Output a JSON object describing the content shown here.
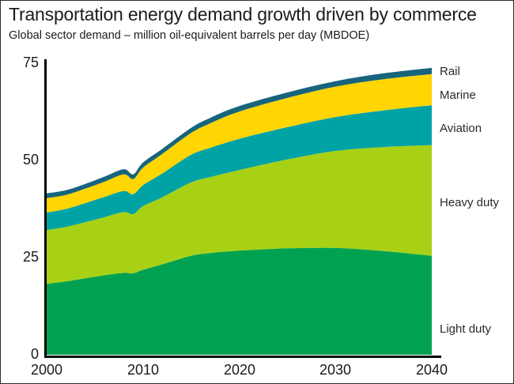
{
  "header": {
    "title": "Transportation energy demand growth driven by commerce",
    "subtitle": "Global sector demand – million oil-equivalent barrels per day (MBDOE)"
  },
  "chart_data": {
    "type": "area",
    "stacked": true,
    "title": "Transportation energy demand growth driven by commerce",
    "subtitle": "Global sector demand – million oil-equivalent barrels per day (MBDOE)",
    "x": [
      2000,
      2002,
      2004,
      2006,
      2008,
      2009,
      2010,
      2012,
      2015,
      2017,
      2020,
      2025,
      2030,
      2035,
      2040
    ],
    "series": [
      {
        "name": "Light duty",
        "color": "#00a251",
        "values": [
          18.2,
          18.8,
          19.6,
          20.4,
          21.0,
          20.9,
          21.8,
          23.2,
          25.4,
          26.1,
          26.7,
          27.3,
          27.4,
          26.6,
          25.4
        ]
      },
      {
        "name": "Heavy duty",
        "color": "#a8d116",
        "values": [
          13.8,
          14.0,
          14.4,
          14.9,
          15.6,
          15.2,
          16.3,
          17.2,
          18.8,
          19.5,
          20.7,
          22.8,
          24.9,
          26.7,
          28.4
        ]
      },
      {
        "name": "Aviation",
        "color": "#00a3a5",
        "values": [
          4.5,
          4.6,
          4.9,
          5.2,
          5.4,
          5.1,
          5.4,
          6.1,
          7.1,
          7.5,
          8.0,
          8.3,
          8.7,
          9.4,
          10.2
        ]
      },
      {
        "name": "Marine",
        "color": "#ffd502",
        "values": [
          3.7,
          3.6,
          3.7,
          3.9,
          4.3,
          3.9,
          4.5,
          5.0,
          5.6,
          6.3,
          7.0,
          7.5,
          7.8,
          8.0,
          8.0
        ]
      },
      {
        "name": "Rail",
        "color": "#17657d",
        "values": [
          1.2,
          1.2,
          1.2,
          1.3,
          1.3,
          1.2,
          1.3,
          1.3,
          1.3,
          1.4,
          1.4,
          1.4,
          1.4,
          1.5,
          1.6
        ]
      }
    ],
    "xlim": [
      2000,
      2040
    ],
    "ylim": [
      0,
      75
    ],
    "x_ticks": [
      "2000",
      "2010",
      "2020",
      "2030",
      "2040"
    ],
    "y_ticks": [
      "75",
      "50",
      "25",
      "0"
    ],
    "grid": false,
    "legend_position": "right-of-plot",
    "axis_color": "#000000"
  }
}
